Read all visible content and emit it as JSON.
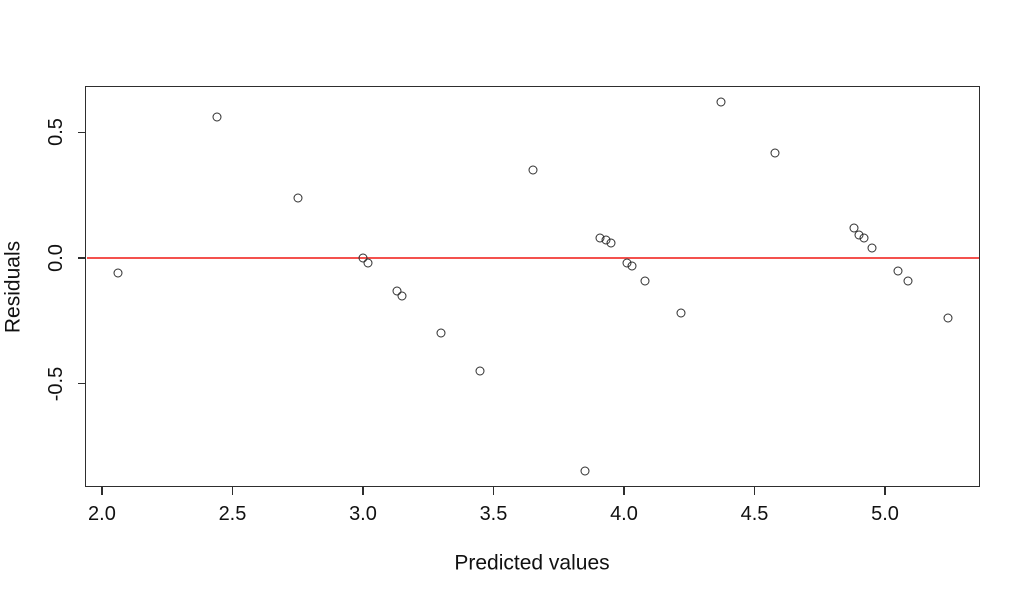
{
  "figure": {
    "background": "#ffffff",
    "axis_color": "#2e2e2e",
    "text_color": "#111111"
  },
  "chart_data": {
    "type": "scatter",
    "title": "",
    "xlabel": "Predicted values",
    "ylabel": "Residuals",
    "xlim": [
      1.935,
      5.364
    ],
    "ylim": [
      -0.912,
      0.685
    ],
    "x_ticks": [
      2.0,
      2.5,
      3.0,
      3.5,
      4.0,
      4.5,
      5.0
    ],
    "x_tick_labels": [
      "2.0",
      "2.5",
      "3.0",
      "3.5",
      "4.0",
      "4.5",
      "5.0"
    ],
    "y_ticks": [
      -0.5,
      0.0,
      0.5
    ],
    "y_tick_labels": [
      "-0.5",
      "0.0",
      "0.5"
    ],
    "grid": false,
    "legend": null,
    "marker": "open-circle",
    "marker_color": "#2e2e2e",
    "zero_line": {
      "y": 0.0,
      "color": "#f4514d"
    },
    "points": [
      [
        2.06,
        -0.06
      ],
      [
        2.44,
        0.56
      ],
      [
        2.75,
        0.24
      ],
      [
        3.0,
        0.0
      ],
      [
        3.02,
        -0.02
      ],
      [
        3.13,
        -0.13
      ],
      [
        3.15,
        -0.15
      ],
      [
        3.3,
        -0.3
      ],
      [
        3.45,
        -0.45
      ],
      [
        3.65,
        0.35
      ],
      [
        3.85,
        -0.85
      ],
      [
        3.91,
        0.08
      ],
      [
        3.93,
        0.07
      ],
      [
        3.95,
        0.06
      ],
      [
        4.01,
        -0.02
      ],
      [
        4.03,
        -0.03
      ],
      [
        4.08,
        -0.09
      ],
      [
        4.22,
        -0.22
      ],
      [
        4.37,
        0.62
      ],
      [
        4.58,
        0.42
      ],
      [
        4.88,
        0.12
      ],
      [
        4.9,
        0.09
      ],
      [
        4.92,
        0.08
      ],
      [
        4.95,
        0.04
      ],
      [
        5.05,
        -0.05
      ],
      [
        5.09,
        -0.09
      ],
      [
        5.24,
        -0.24
      ]
    ]
  }
}
